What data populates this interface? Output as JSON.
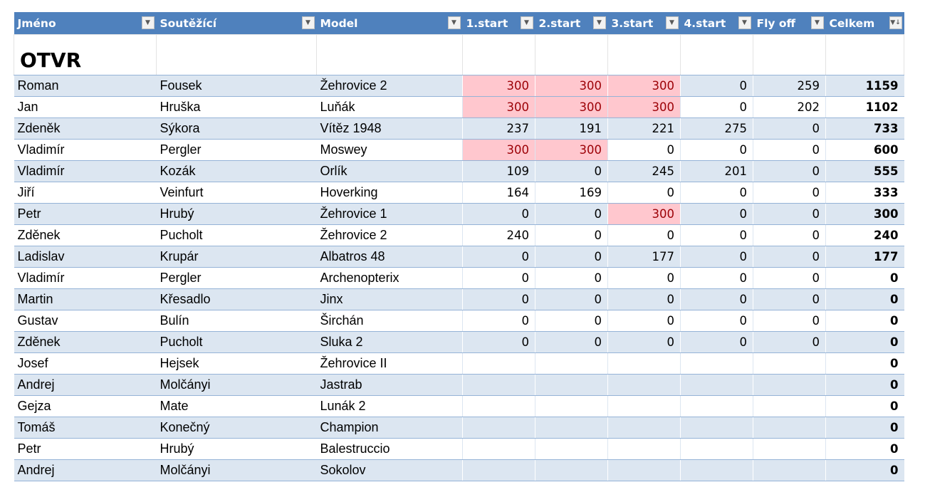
{
  "sheet_title": "OTVR",
  "columns": [
    "Jméno",
    "Soutěžící",
    "Model",
    "1.start",
    "2.start",
    "3.start",
    "4.start",
    "Fly off",
    "Celkem"
  ],
  "filter_icons": {
    "default": "dropdown-arrow-icon",
    "sorted": "sort-descending-icon"
  },
  "highlight_colors": {
    "fill": "#ffc7ce",
    "text": "#9c0006"
  },
  "header_color": "#4f81bd",
  "band_color": "#dce6f1",
  "rows": [
    {
      "jmeno": "Roman",
      "soutezici": "Fousek",
      "model": "Žehrovice 2",
      "s1": "300",
      "s2": "300",
      "s3": "300",
      "s4": "0",
      "flyoff": "259",
      "celkem": "1159",
      "hl": [
        1,
        1,
        1,
        0,
        0
      ]
    },
    {
      "jmeno": "Jan",
      "soutezici": "Hruška",
      "model": "Luňák",
      "s1": "300",
      "s2": "300",
      "s3": "300",
      "s4": "0",
      "flyoff": "202",
      "celkem": "1102",
      "hl": [
        1,
        1,
        1,
        0,
        0
      ]
    },
    {
      "jmeno": "Zdeněk",
      "soutezici": "Sýkora",
      "model": "Vítěz 1948",
      "s1": "237",
      "s2": "191",
      "s3": "221",
      "s4": "275",
      "flyoff": "0",
      "celkem": "733",
      "hl": [
        0,
        0,
        0,
        0,
        0
      ]
    },
    {
      "jmeno": "Vladimír",
      "soutezici": "Pergler",
      "model": "Moswey",
      "s1": "300",
      "s2": "300",
      "s3": "0",
      "s4": "0",
      "flyoff": "0",
      "celkem": "600",
      "hl": [
        1,
        1,
        0,
        0,
        0
      ]
    },
    {
      "jmeno": "Vladimír",
      "soutezici": "Kozák",
      "model": "Orlík",
      "s1": "109",
      "s2": "0",
      "s3": "245",
      "s4": "201",
      "flyoff": "0",
      "celkem": "555",
      "hl": [
        0,
        0,
        0,
        0,
        0
      ]
    },
    {
      "jmeno": "Jiří",
      "soutezici": "Veinfurt",
      "model": "Hoverking",
      "s1": "164",
      "s2": "169",
      "s3": "0",
      "s4": "0",
      "flyoff": "0",
      "celkem": "333",
      "hl": [
        0,
        0,
        0,
        0,
        0
      ]
    },
    {
      "jmeno": "Petr",
      "soutezici": "Hrubý",
      "model": "Žehrovice 1",
      "s1": "0",
      "s2": "0",
      "s3": "300",
      "s4": "0",
      "flyoff": "0",
      "celkem": "300",
      "hl": [
        0,
        0,
        1,
        0,
        0
      ]
    },
    {
      "jmeno": "Zděnek",
      "soutezici": "Pucholt",
      "model": "Žehrovice 2",
      "s1": "240",
      "s2": "0",
      "s3": "0",
      "s4": "0",
      "flyoff": "0",
      "celkem": "240",
      "hl": [
        0,
        0,
        0,
        0,
        0
      ]
    },
    {
      "jmeno": "Ladislav",
      "soutezici": "Krupár",
      "model": "Albatros 48",
      "s1": "0",
      "s2": "0",
      "s3": "177",
      "s4": "0",
      "flyoff": "0",
      "celkem": "177",
      "hl": [
        0,
        0,
        0,
        0,
        0
      ]
    },
    {
      "jmeno": "Vladimír",
      "soutezici": "Pergler",
      "model": "Archenopterix",
      "s1": "0",
      "s2": "0",
      "s3": "0",
      "s4": "0",
      "flyoff": "0",
      "celkem": "0",
      "hl": [
        0,
        0,
        0,
        0,
        0
      ]
    },
    {
      "jmeno": "Martin",
      "soutezici": "Křesadlo",
      "model": "Jinx",
      "s1": "0",
      "s2": "0",
      "s3": "0",
      "s4": "0",
      "flyoff": "0",
      "celkem": "0",
      "hl": [
        0,
        0,
        0,
        0,
        0
      ]
    },
    {
      "jmeno": "Gustav",
      "soutezici": "Bulín",
      "model": "Širchán",
      "s1": "0",
      "s2": "0",
      "s3": "0",
      "s4": "0",
      "flyoff": "0",
      "celkem": "0",
      "hl": [
        0,
        0,
        0,
        0,
        0
      ]
    },
    {
      "jmeno": "Zděnek",
      "soutezici": "Pucholt",
      "model": "Sluka 2",
      "s1": "0",
      "s2": "0",
      "s3": "0",
      "s4": "0",
      "flyoff": "0",
      "celkem": "0",
      "hl": [
        0,
        0,
        0,
        0,
        0
      ]
    },
    {
      "jmeno": "Josef",
      "soutezici": "Hejsek",
      "model": "Žehrovice II",
      "s1": "",
      "s2": "",
      "s3": "",
      "s4": "",
      "flyoff": "",
      "celkem": "0",
      "hl": [
        0,
        0,
        0,
        0,
        0
      ]
    },
    {
      "jmeno": "Andrej",
      "soutezici": "Molčányi",
      "model": "Jastrab",
      "s1": "",
      "s2": "",
      "s3": "",
      "s4": "",
      "flyoff": "",
      "celkem": "0",
      "hl": [
        0,
        0,
        0,
        0,
        0
      ]
    },
    {
      "jmeno": "Gejza",
      "soutezici": "Mate",
      "model": "Lunák 2",
      "s1": "",
      "s2": "",
      "s3": "",
      "s4": "",
      "flyoff": "",
      "celkem": "0",
      "hl": [
        0,
        0,
        0,
        0,
        0
      ]
    },
    {
      "jmeno": "Tomáš",
      "soutezici": "Konečný",
      "model": "Champion",
      "s1": "",
      "s2": "",
      "s3": "",
      "s4": "",
      "flyoff": "",
      "celkem": "0",
      "hl": [
        0,
        0,
        0,
        0,
        0
      ]
    },
    {
      "jmeno": "Petr",
      "soutezici": "Hrubý",
      "model": "Balestruccio",
      "s1": "",
      "s2": "",
      "s3": "",
      "s4": "",
      "flyoff": "",
      "celkem": "0",
      "hl": [
        0,
        0,
        0,
        0,
        0
      ]
    },
    {
      "jmeno": "Andrej",
      "soutezici": "Molčányi",
      "model": "Sokolov",
      "s1": "",
      "s2": "",
      "s3": "",
      "s4": "",
      "flyoff": "",
      "celkem": "0",
      "hl": [
        0,
        0,
        0,
        0,
        0
      ]
    }
  ]
}
